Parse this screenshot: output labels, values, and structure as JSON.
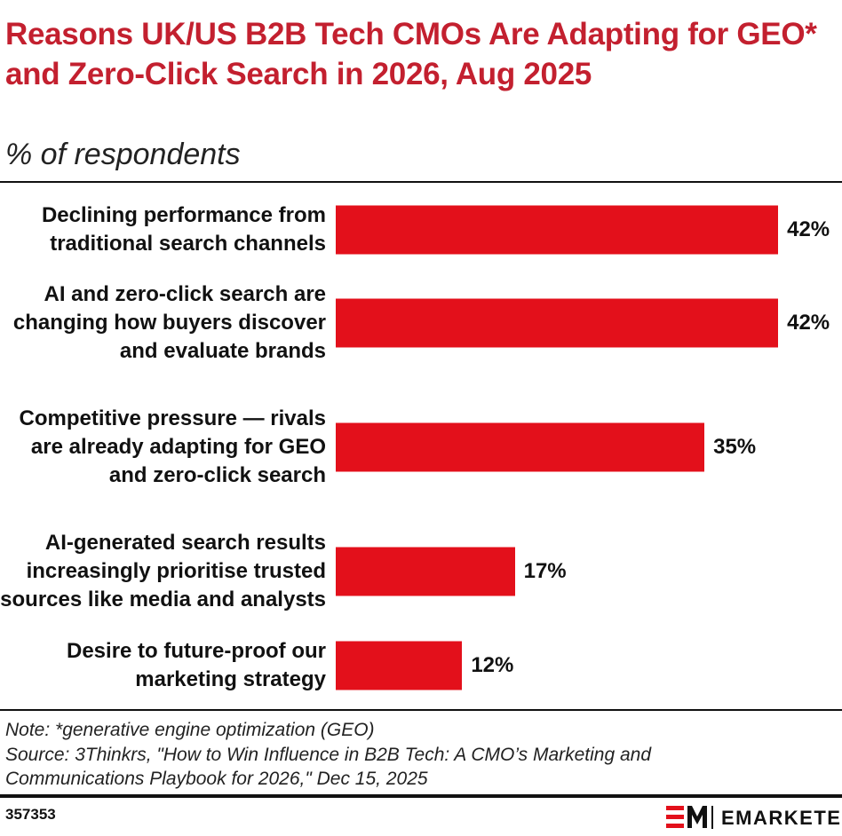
{
  "chart_data": {
    "type": "bar",
    "orientation": "horizontal",
    "title": "Reasons UK/US B2B Tech CMOs Are Adapting for GEO* and Zero-Click Search in 2026, Aug 2025",
    "subtitle": "% of respondents",
    "categories": [
      "Declining performance from traditional search channels",
      "AI and zero-click search are changing how buyers discover and evaluate brands",
      "Competitive pressure — rivals are already adapting for GEO and zero-click search",
      "AI-generated search results increasingly prioritise trusted sources like media and analysts",
      "Desire to future-proof our marketing strategy"
    ],
    "values": [
      42,
      42,
      35,
      17,
      12
    ],
    "value_labels": [
      "42%",
      "42%",
      "35%",
      "17%",
      "12%"
    ],
    "color": "#e3101b",
    "note": "Note: *generative engine optimization (GEO)",
    "source": "Source: 3Thinkrs, \"How to Win Influence in B2B Tech: A CMO’s Marketing and Communications Playbook for 2026,\" Dec 15, 2025",
    "chart_id": "357353",
    "brand": "EMARKETER"
  }
}
